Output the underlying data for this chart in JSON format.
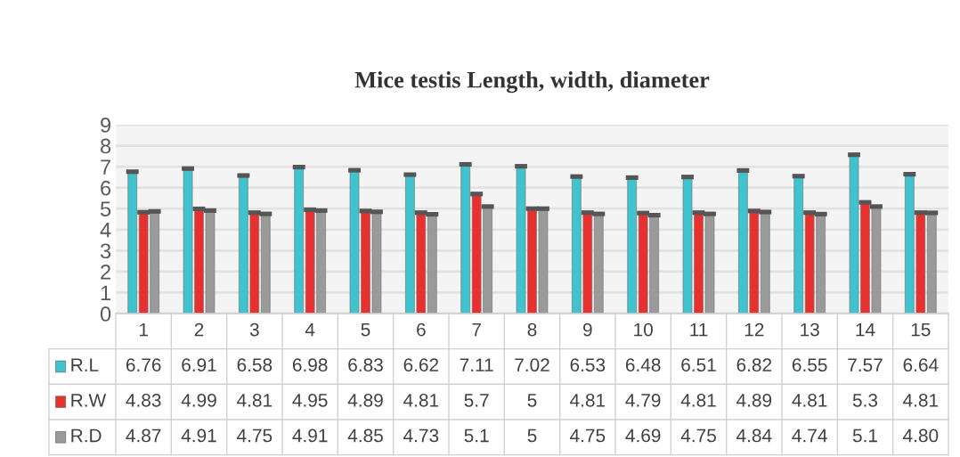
{
  "chart_data": {
    "type": "bar",
    "title": "Mice testis Length, width, diameter",
    "categories": [
      "1",
      "2",
      "3",
      "4",
      "5",
      "6",
      "7",
      "8",
      "9",
      "10",
      "11",
      "12",
      "13",
      "14",
      "15"
    ],
    "series": [
      {
        "name": "R.L",
        "color": "#3fc3cf",
        "values": [
          6.76,
          6.91,
          6.58,
          6.98,
          6.83,
          6.62,
          7.11,
          7.02,
          6.53,
          6.48,
          6.51,
          6.82,
          6.55,
          7.57,
          6.64
        ],
        "errors": [
          0.05,
          0.05,
          0.05,
          0.05,
          0.05,
          0.05,
          0.05,
          0.05,
          0.05,
          0.05,
          0.05,
          0.05,
          0.05,
          0.05,
          0.05
        ],
        "value_labels": [
          "6.76",
          "6.91",
          "6.58",
          "6.98",
          "6.83",
          "6.62",
          "7.11",
          "7.02",
          "6.53",
          "6.48",
          "6.51",
          "6.82",
          "6.55",
          "7.57",
          "6.64"
        ]
      },
      {
        "name": "R.W",
        "color": "#e8302e",
        "values": [
          4.83,
          4.99,
          4.81,
          4.95,
          4.89,
          4.81,
          5.7,
          5,
          4.81,
          4.79,
          4.81,
          4.89,
          4.81,
          5.3,
          4.81
        ],
        "errors": [
          0.05,
          0.05,
          0.05,
          0.05,
          0.05,
          0.05,
          0.05,
          0.05,
          0.05,
          0.05,
          0.05,
          0.05,
          0.05,
          0.05,
          0.05
        ],
        "value_labels": [
          "4.83",
          "4.99",
          "4.81",
          "4.95",
          "4.89",
          "4.81",
          "5.7",
          "5",
          "4.81",
          "4.79",
          "4.81",
          "4.89",
          "4.81",
          "5.3",
          "4.81"
        ]
      },
      {
        "name": "R.D",
        "color": "#9a9a9a",
        "values": [
          4.87,
          4.91,
          4.75,
          4.91,
          4.85,
          4.73,
          5.1,
          5,
          4.75,
          4.69,
          4.75,
          4.84,
          4.74,
          5.1,
          4.8
        ],
        "errors": [
          0.05,
          0.05,
          0.05,
          0.05,
          0.05,
          0.05,
          0.05,
          0.05,
          0.05,
          0.05,
          0.05,
          0.05,
          0.05,
          0.05,
          0.05
        ],
        "value_labels": [
          "4.87",
          "4.91",
          "4.75",
          "4.91",
          "4.85",
          "4.73",
          "5.1",
          "5",
          "4.75",
          "4.69",
          "4.75",
          "4.84",
          "4.74",
          "5.1",
          "4.80"
        ]
      }
    ],
    "ylim": [
      0,
      9
    ],
    "yticks": [
      0,
      1,
      2,
      3,
      4,
      5,
      6,
      7,
      8,
      9
    ],
    "grid": "y",
    "legend": "bottom"
  }
}
